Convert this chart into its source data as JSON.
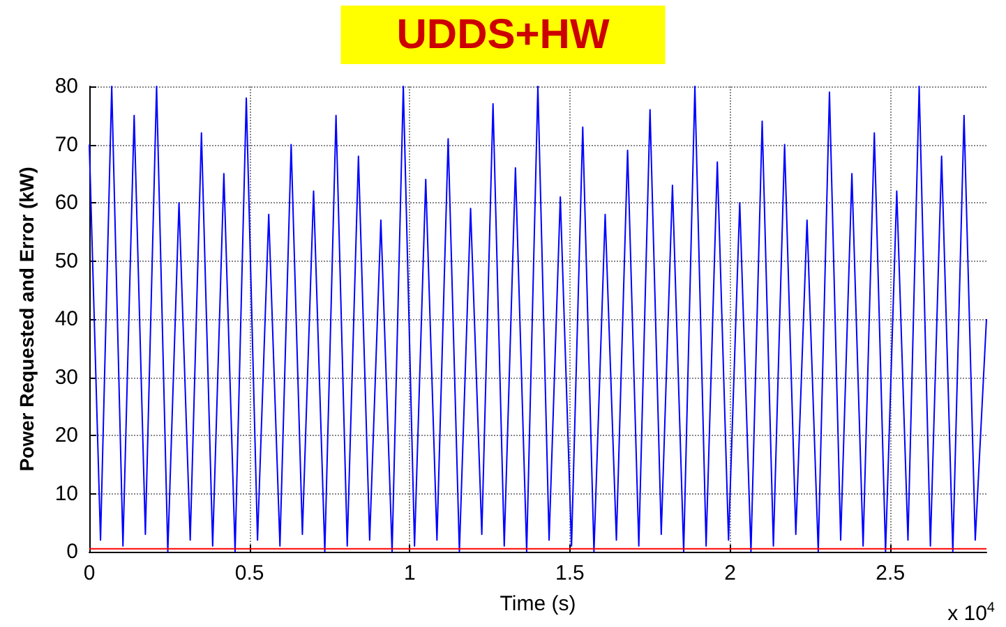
{
  "chart_data": {
    "type": "line",
    "title": "UDDS+HW",
    "xlabel": "Time (s)",
    "ylabel": "Power Requested and Error (kW)",
    "annotations": [
      "x 10$^{4}$"
    ],
    "xlim": [
      0,
      2.8
    ],
    "xticks": [
      0,
      0.5,
      1,
      1.5,
      2,
      2.5
    ],
    "ylim": [
      0,
      80
    ],
    "yticks": [
      0,
      10,
      20,
      30,
      40,
      50,
      60,
      70,
      80
    ],
    "grid": true,
    "marker": "none",
    "line_style": "solid",
    "series": [
      {
        "color": "#0000ff",
        "x": [
          0,
          0.035,
          0.07,
          0.105,
          0.14,
          0.175,
          0.21,
          0.245,
          0.28,
          0.315,
          0.35,
          0.385,
          0.42,
          0.455,
          0.49,
          0.525,
          0.56,
          0.595,
          0.63,
          0.665,
          0.7,
          0.735,
          0.77,
          0.805,
          0.84,
          0.875,
          0.91,
          0.945,
          0.98,
          1.015,
          1.05,
          1.085,
          1.12,
          1.155,
          1.19,
          1.225,
          1.26,
          1.295,
          1.33,
          1.365,
          1.4,
          1.435,
          1.47,
          1.505,
          1.54,
          1.575,
          1.61,
          1.645,
          1.68,
          1.715,
          1.75,
          1.785,
          1.82,
          1.855,
          1.89,
          1.925,
          1.96,
          1.995,
          2.03,
          2.065,
          2.1,
          2.135,
          2.17,
          2.205,
          2.24,
          2.275,
          2.31,
          2.345,
          2.38,
          2.415,
          2.45,
          2.485,
          2.52,
          2.555,
          2.59,
          2.625,
          2.66,
          2.695,
          2.73,
          2.765,
          2.8
        ],
        "values": [
          70,
          2,
          80,
          1,
          75,
          3,
          80,
          0,
          60,
          2,
          72,
          1,
          65,
          0,
          78,
          2,
          58,
          1,
          70,
          3,
          62,
          0,
          75,
          1,
          68,
          2,
          57,
          0,
          80,
          1,
          64,
          2,
          71,
          0,
          59,
          3,
          77,
          1,
          66,
          0,
          80,
          2,
          61,
          1,
          73,
          0,
          58,
          2,
          69,
          1,
          76,
          3,
          63,
          0,
          80,
          1,
          67,
          2,
          60,
          0,
          74,
          1,
          70,
          3,
          57,
          0,
          79,
          2,
          65,
          1,
          72,
          0,
          62,
          2,
          80,
          1,
          68,
          0,
          75,
          2,
          40
        ]
      },
      {
        "color": "#ff0000",
        "x": [
          0,
          1.4,
          2.8
        ],
        "values": [
          0.5,
          0.5,
          0.5
        ]
      }
    ]
  }
}
